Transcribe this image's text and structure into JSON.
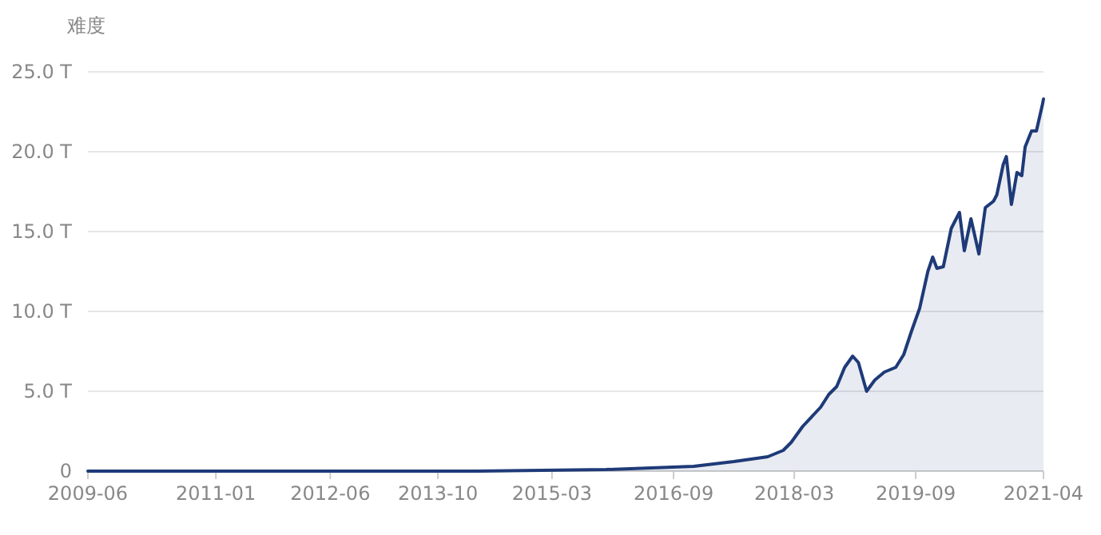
{
  "chart_data": {
    "type": "area",
    "ylabel": "难度",
    "color": "#1e3a78",
    "grid": "y",
    "marker": "none",
    "x": [
      "2009-06-01",
      "2012-01-01",
      "2014-04-01",
      "2015-11-01",
      "2016-12-01",
      "2017-06-01",
      "2017-11-01",
      "2018-01-10",
      "2018-02-15",
      "2018-04-08",
      "2018-06-28",
      "2018-08-04",
      "2018-09-09",
      "2018-10-15",
      "2018-11-20",
      "2018-12-16",
      "2019-01-22",
      "2019-02-28",
      "2019-04-12",
      "2019-06-03",
      "2019-07-09",
      "2019-08-14",
      "2019-09-19",
      "2019-10-26",
      "2019-11-17",
      "2019-12-06",
      "2020-01-04",
      "2020-02-09",
      "2020-03-17",
      "2020-04-08",
      "2020-05-08",
      "2020-06-13",
      "2020-07-12",
      "2020-08-18",
      "2020-09-02",
      "2020-10-01",
      "2020-10-15",
      "2020-11-07",
      "2020-12-02",
      "2020-12-24",
      "2021-01-08",
      "2021-02-06",
      "2021-02-28",
      "2021-03-28",
      "2021-04-01"
    ],
    "values": [
      0,
      0,
      0,
      0.1,
      0.3,
      0.6,
      0.9,
      1.3,
      1.8,
      2.8,
      4.0,
      4.8,
      5.3,
      6.5,
      7.2,
      6.8,
      5.0,
      5.7,
      6.2,
      6.5,
      7.3,
      8.8,
      10.2,
      12.5,
      13.4,
      12.7,
      12.8,
      15.2,
      16.2,
      13.8,
      15.8,
      13.6,
      16.5,
      16.9,
      17.3,
      19.2,
      19.7,
      16.7,
      18.7,
      18.5,
      20.3,
      21.3,
      21.3,
      23.0,
      23.3
    ],
    "xlim": [
      "2009-06-01",
      "2021-04-01"
    ],
    "xticks": [
      {
        "value": "2009-06-01",
        "label": "2009-06"
      },
      {
        "value": "2011-01-01",
        "label": "2011-01"
      },
      {
        "value": "2012-06-01",
        "label": "2012-06"
      },
      {
        "value": "2013-10-01",
        "label": "2013-10"
      },
      {
        "value": "2015-03-01",
        "label": "2015-03"
      },
      {
        "value": "2016-09-01",
        "label": "2016-09"
      },
      {
        "value": "2018-03-01",
        "label": "2018-03"
      },
      {
        "value": "2019-09-01",
        "label": "2019-09"
      },
      {
        "value": "2021-04-01",
        "label": "2021-04"
      }
    ],
    "ylim": [
      0,
      25
    ],
    "yticks": [
      {
        "value": 0,
        "label": "0"
      },
      {
        "value": 5,
        "label": "5.0 T"
      },
      {
        "value": 10,
        "label": "10.0 T"
      },
      {
        "value": 15,
        "label": "15.0 T"
      },
      {
        "value": 20,
        "label": "20.0 T"
      },
      {
        "value": 25,
        "label": "25.0 T"
      }
    ]
  }
}
